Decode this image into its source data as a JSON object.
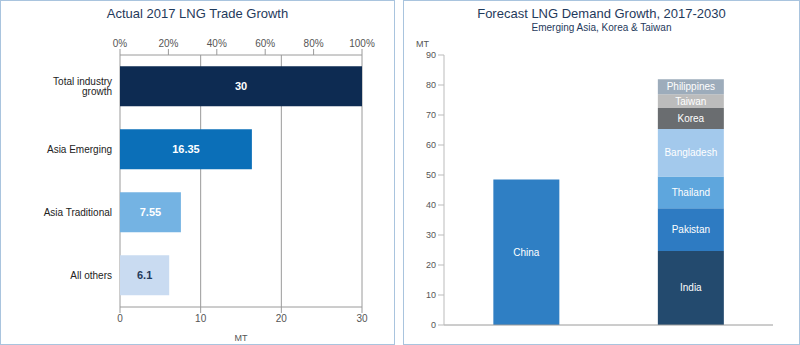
{
  "chart_data": [
    {
      "type": "bar",
      "title": "Actual 2017 LNG Trade Growth",
      "orientation": "horizontal",
      "categories": [
        "Total industry growth",
        "Asia Emerging",
        "Asia Traditional",
        "All others"
      ],
      "values": [
        30,
        16.35,
        7.55,
        6.1
      ],
      "colors": [
        "#0d2b52",
        "#0b6fb8",
        "#74b3e3",
        "#c9dbf1"
      ],
      "x_label": "MT",
      "xlim": [
        0,
        30
      ],
      "xticks": [
        0,
        10,
        20,
        30
      ],
      "x2lim": [
        0,
        100
      ],
      "x2ticks": [
        {
          "value": 0,
          "label": "0%"
        },
        {
          "value": 20,
          "label": "20%"
        },
        {
          "value": 40,
          "label": "40%"
        },
        {
          "value": 60,
          "label": "60%"
        },
        {
          "value": 80,
          "label": "80%"
        },
        {
          "value": 100,
          "label": "100%"
        }
      ],
      "grid": true,
      "data_labels": true
    },
    {
      "type": "bar",
      "title": "Forecast LNG Demand Growth, 2017-2030",
      "subtitle": "Emerging Asia, Korea & Taiwan",
      "stacked": true,
      "y_label": "MT",
      "categories": [
        null,
        null
      ],
      "ylim": [
        0,
        90
      ],
      "yticks": [
        0,
        10,
        20,
        30,
        40,
        50,
        60,
        70,
        80,
        90
      ],
      "grid": false,
      "tick_labels": "y",
      "series": [
        {
          "name": "China",
          "color": "#2f7fc4",
          "values": [
            48.5,
            null
          ]
        },
        {
          "name": "India",
          "color": "#234a6e",
          "values": [
            null,
            24.7
          ]
        },
        {
          "name": "Pakistan",
          "color": "#2e7bc2",
          "values": [
            null,
            14.2
          ]
        },
        {
          "name": "Thailand",
          "color": "#5ea6dd",
          "values": [
            null,
            10.6
          ]
        },
        {
          "name": "Bangladesh",
          "color": "#a3c9ec",
          "values": [
            null,
            15.8
          ]
        },
        {
          "name": "Korea",
          "color": "#6a6d70",
          "values": [
            null,
            7
          ]
        },
        {
          "name": "Taiwan",
          "color": "#bcbcbc",
          "values": [
            null,
            4.6
          ]
        },
        {
          "name": "Philippines",
          "color": "#9dacbb",
          "values": [
            null,
            5
          ]
        }
      ]
    }
  ]
}
